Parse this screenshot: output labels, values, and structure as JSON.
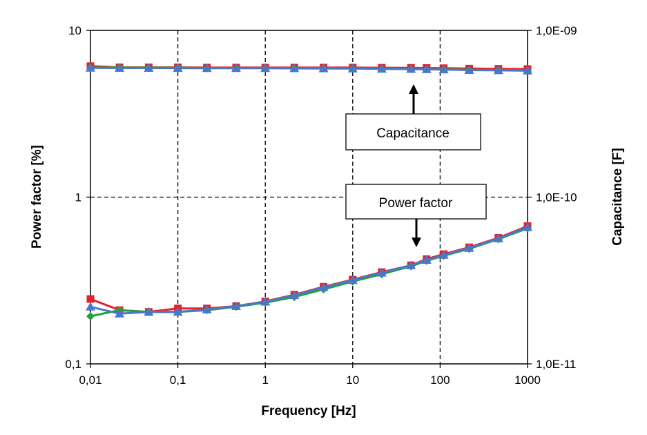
{
  "chart_data": {
    "type": "line",
    "title": "",
    "xlabel": "Frequency [Hz]",
    "ylabel": "Power factor [%]",
    "y2label": "Capacitance [F]",
    "xscale": "log",
    "yscale": "log",
    "xlim": [
      0.01,
      1000
    ],
    "ylim": [
      0.1,
      10
    ],
    "y2lim": [
      1e-11,
      1e-09
    ],
    "x_ticks": [
      0.01,
      0.1,
      1,
      10,
      100,
      1000
    ],
    "x_tick_labels": [
      "0,01",
      "0,1",
      "1",
      "10",
      "100",
      "1000"
    ],
    "y_ticks": [
      0.1,
      1,
      10
    ],
    "y_tick_labels": [
      "0,1",
      "1",
      "10"
    ],
    "y2_ticks": [
      1e-11,
      1e-10,
      1e-09
    ],
    "y2_tick_labels": [
      "1,0E-11",
      "1,0E-10",
      "1,0E-09"
    ],
    "grid": "dashed at major decades",
    "legend": "none",
    "annotations": [
      {
        "text": "Capacitance",
        "points_to": "capacitance curves"
      },
      {
        "text": "Power factor",
        "points_to": "power factor curves"
      }
    ],
    "series": [
      {
        "axis": "left",
        "marker": "square",
        "color": "#e8202a",
        "x": [
          0.01,
          0.0215,
          0.0464,
          0.1,
          0.215,
          0.464,
          1,
          2.15,
          4.64,
          10,
          21.5,
          46.4,
          70,
          110,
          215,
          464,
          1000
        ],
        "values": [
          0.245,
          0.21,
          0.205,
          0.215,
          0.215,
          0.222,
          0.237,
          0.26,
          0.29,
          0.32,
          0.355,
          0.39,
          0.425,
          0.455,
          0.5,
          0.57,
          0.67
        ]
      },
      {
        "axis": "left",
        "marker": "diamond",
        "color": "#22a03a",
        "x": [
          0.01,
          0.0215,
          0.0464,
          0.1,
          0.215,
          0.464,
          1,
          2.15,
          4.64,
          10,
          21.5,
          46.4,
          70,
          110,
          215,
          464,
          1000
        ],
        "values": [
          0.193,
          0.21,
          0.205,
          0.205,
          0.21,
          0.22,
          0.233,
          0.252,
          0.28,
          0.312,
          0.345,
          0.385,
          0.415,
          0.445,
          0.49,
          0.56,
          0.65
        ]
      },
      {
        "axis": "left",
        "marker": "triangle",
        "color": "#4a78c8",
        "x": [
          0.01,
          0.0215,
          0.0464,
          0.1,
          0.215,
          0.464,
          1,
          2.15,
          4.64,
          10,
          21.5,
          46.4,
          70,
          110,
          215,
          464,
          1000
        ],
        "values": [
          0.22,
          0.2,
          0.205,
          0.205,
          0.212,
          0.222,
          0.236,
          0.258,
          0.288,
          0.318,
          0.352,
          0.39,
          0.42,
          0.45,
          0.495,
          0.565,
          0.66
        ]
      },
      {
        "axis": "right",
        "marker": "square",
        "color": "#e8202a",
        "x": [
          0.01,
          0.0215,
          0.0464,
          0.1,
          0.215,
          0.464,
          1,
          2.15,
          4.64,
          10,
          21.5,
          46.4,
          70,
          110,
          215,
          464,
          1000
        ],
        "values": [
          6.1e-10,
          6e-10,
          6e-10,
          6e-10,
          5.98e-10,
          5.98e-10,
          5.98e-10,
          5.98e-10,
          5.98e-10,
          5.98e-10,
          5.97e-10,
          5.96e-10,
          5.95e-10,
          5.93e-10,
          5.9e-10,
          5.88e-10,
          5.86e-10
        ]
      },
      {
        "axis": "right",
        "marker": "diamond",
        "color": "#22a03a",
        "x": [
          0.01,
          0.0215,
          0.0464,
          0.1,
          0.215,
          0.464,
          1,
          2.15,
          4.64,
          10,
          21.5,
          46.4,
          70,
          110,
          215,
          464,
          1000
        ],
        "values": [
          5.98e-10,
          5.98e-10,
          5.97e-10,
          5.97e-10,
          5.95e-10,
          5.95e-10,
          5.95e-10,
          5.94e-10,
          5.93e-10,
          5.92e-10,
          5.9e-10,
          5.88e-10,
          5.86e-10,
          5.84e-10,
          5.8e-10,
          5.78e-10,
          5.76e-10
        ]
      },
      {
        "axis": "right",
        "marker": "triangle",
        "color": "#4a78c8",
        "x": [
          0.01,
          0.0215,
          0.0464,
          0.1,
          0.215,
          0.464,
          1,
          2.15,
          4.64,
          10,
          21.5,
          46.4,
          70,
          110,
          215,
          464,
          1000
        ],
        "values": [
          5.96e-10,
          5.95e-10,
          5.95e-10,
          5.94e-10,
          5.93e-10,
          5.93e-10,
          5.93e-10,
          5.92e-10,
          5.91e-10,
          5.9e-10,
          5.88e-10,
          5.86e-10,
          5.84e-10,
          5.82e-10,
          5.78e-10,
          5.76e-10,
          5.73e-10
        ]
      }
    ]
  }
}
